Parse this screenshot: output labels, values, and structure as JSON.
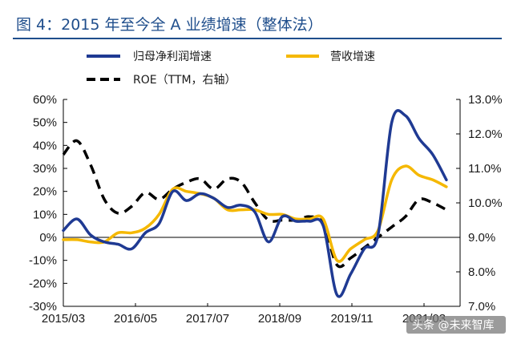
{
  "title": "图 4：2015 年至今全 A 业绩增速（整体法）",
  "watermark": "头条 @未来智库",
  "colors": {
    "title": "#1f4e8c",
    "rule": "#1f4e8c",
    "net_profit": "#1f3a93",
    "revenue": "#f5b800",
    "roe": "#000000",
    "axis": "#000000"
  },
  "chart_data": {
    "type": "line",
    "x_ticks": [
      "2015/03",
      "2016/05",
      "2017/07",
      "2018/09",
      "2019/11",
      "2021/03"
    ],
    "x_range": [
      "2015-03",
      "2022-06"
    ],
    "y_left": {
      "range": [
        -30,
        60
      ],
      "ticks": [
        "60%",
        "50%",
        "40%",
        "30%",
        "20%",
        "10%",
        "0%",
        "-10%",
        "-20%",
        "-30%"
      ]
    },
    "y_right": {
      "range": [
        7.0,
        13.0
      ],
      "ticks": [
        "13.0%",
        "12.0%",
        "11.0%",
        "10.0%",
        "9.0%",
        "8.0%",
        "7.0%"
      ]
    },
    "grid": false,
    "legend_position": "top",
    "series": [
      {
        "name": "归母净利润增速",
        "axis": "left",
        "style": "solid",
        "x": [
          "2015-03",
          "2015-06",
          "2015-09",
          "2015-12",
          "2016-03",
          "2016-06",
          "2016-09",
          "2016-12",
          "2017-03",
          "2017-06",
          "2017-09",
          "2017-12",
          "2018-03",
          "2018-06",
          "2018-09",
          "2018-12",
          "2019-03",
          "2019-06",
          "2019-09",
          "2019-12",
          "2020-03",
          "2020-06",
          "2020-09",
          "2020-12",
          "2021-03",
          "2021-06",
          "2021-09",
          "2021-12",
          "2022-03"
        ],
        "values": [
          3,
          8,
          1,
          -2,
          -3,
          -5,
          2,
          6,
          20,
          16,
          19,
          17,
          13,
          14,
          11,
          -2,
          9,
          7,
          7,
          5,
          -25,
          -16,
          -5,
          1,
          50,
          53,
          43,
          36,
          25
        ]
      },
      {
        "name": "营收增速",
        "axis": "left",
        "style": "solid",
        "x": [
          "2015-03",
          "2015-06",
          "2015-09",
          "2015-12",
          "2016-03",
          "2016-06",
          "2016-09",
          "2016-12",
          "2017-03",
          "2017-06",
          "2017-09",
          "2017-12",
          "2018-03",
          "2018-06",
          "2018-09",
          "2018-12",
          "2019-03",
          "2019-06",
          "2019-09",
          "2019-12",
          "2020-03",
          "2020-06",
          "2020-09",
          "2020-12",
          "2021-03",
          "2021-06",
          "2021-09",
          "2021-12",
          "2022-03"
        ],
        "values": [
          -1,
          -1,
          -2,
          -2,
          2,
          2,
          4,
          10,
          21,
          20,
          19,
          17,
          12,
          12,
          12,
          10,
          10,
          8,
          8,
          8,
          -10,
          -5,
          -1,
          3,
          25,
          31,
          27,
          25,
          22
        ]
      },
      {
        "name": "ROE（TTM，右轴）",
        "axis": "right",
        "style": "dashed",
        "x": [
          "2015-03",
          "2015-06",
          "2015-09",
          "2015-12",
          "2016-03",
          "2016-06",
          "2016-09",
          "2016-12",
          "2017-03",
          "2017-06",
          "2017-09",
          "2017-12",
          "2018-03",
          "2018-06",
          "2018-09",
          "2018-12",
          "2019-03",
          "2019-06",
          "2019-09",
          "2019-12",
          "2020-03",
          "2020-06",
          "2020-09",
          "2020-12",
          "2021-03",
          "2021-06",
          "2021-09",
          "2021-12",
          "2022-03"
        ],
        "values": [
          11.4,
          11.8,
          11.1,
          10.1,
          9.7,
          9.9,
          10.3,
          10.1,
          10.4,
          10.6,
          10.7,
          10.4,
          10.7,
          10.6,
          10.0,
          9.5,
          9.5,
          9.5,
          9.6,
          9.4,
          8.2,
          8.4,
          8.7,
          9.0,
          9.3,
          9.6,
          10.1,
          10.0,
          9.8
        ]
      }
    ]
  }
}
